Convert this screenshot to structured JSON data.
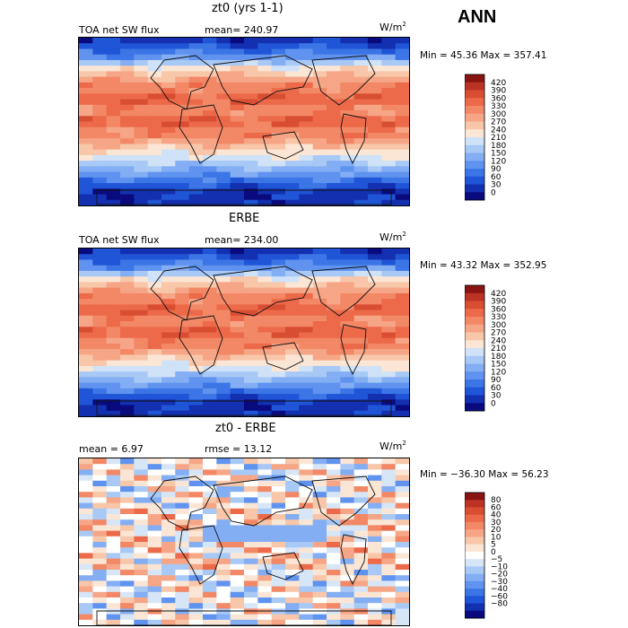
{
  "season": "ANN",
  "colors": {
    "sw_scale": [
      "#0a0a7f",
      "#1330b0",
      "#1f55d6",
      "#3c75e6",
      "#5f93ef",
      "#84aef3",
      "#a8c9f6",
      "#cfe2f7",
      "#fbe6d6",
      "#f8c6a8",
      "#f6a686",
      "#f28866",
      "#ec6a4a",
      "#d94e33",
      "#bb3324",
      "#8a1411"
    ],
    "diff_scale": [
      "#0a0a7f",
      "#1330b0",
      "#1f55d6",
      "#3c75e6",
      "#5f93ef",
      "#84aef3",
      "#a8c9f6",
      "#d7e6f7",
      "#ffffff",
      "#fbe6d6",
      "#f8c6a8",
      "#f6a686",
      "#f28866",
      "#ec6a4a",
      "#d94e33",
      "#bb3324",
      "#8a1411"
    ]
  },
  "panels": [
    {
      "title": "zt0 (yrs 1-1)",
      "variable": "TOA net SW flux",
      "stat1": "mean= 240.97",
      "stat2": "",
      "units": "W/m",
      "units_exp": "2",
      "minmax": "Min =  45.36 Max = 357.41",
      "colorbar_labels": [
        "420",
        "390",
        "360",
        "330",
        "300",
        "270",
        "240",
        "210",
        "180",
        "150",
        "120",
        "90",
        "60",
        "30",
        "0"
      ],
      "kind": "sw"
    },
    {
      "title": "ERBE",
      "variable": "TOA net SW flux",
      "stat1": "mean= 234.00",
      "stat2": "",
      "units": "W/m",
      "units_exp": "2",
      "minmax": "Min =  43.32 Max = 352.95",
      "colorbar_labels": [
        "420",
        "390",
        "360",
        "330",
        "300",
        "270",
        "240",
        "210",
        "180",
        "150",
        "120",
        "90",
        "60",
        "30",
        "0"
      ],
      "kind": "sw"
    },
    {
      "title": "zt0 - ERBE",
      "variable": "",
      "stat1": "mean =    6.97",
      "stat2": "rmse =   13.12",
      "units": "W/m",
      "units_exp": "2",
      "minmax": "Min = −36.30 Max =  56.23",
      "colorbar_labels": [
        "80",
        "60",
        "40",
        "30",
        "20",
        "10",
        "5",
        "0",
        "−5",
        "−10",
        "−20",
        "−30",
        "−40",
        "−60",
        "−80"
      ],
      "kind": "diff"
    }
  ],
  "chart_data": [
    {
      "type": "heatmap",
      "title": "zt0 (yrs 1-1)",
      "subtitle": "TOA net SW flux",
      "units": "W/m2",
      "mean": 240.97,
      "min": 45.36,
      "max": 357.41,
      "colorbar_levels": [
        0,
        30,
        60,
        90,
        120,
        150,
        180,
        210,
        240,
        270,
        300,
        330,
        360,
        390,
        420
      ]
    },
    {
      "type": "heatmap",
      "title": "ERBE",
      "subtitle": "TOA net SW flux",
      "units": "W/m2",
      "mean": 234.0,
      "min": 43.32,
      "max": 352.95,
      "colorbar_levels": [
        0,
        30,
        60,
        90,
        120,
        150,
        180,
        210,
        240,
        270,
        300,
        330,
        360,
        390,
        420
      ]
    },
    {
      "type": "heatmap",
      "title": "zt0 - ERBE",
      "units": "W/m2",
      "mean": 6.97,
      "rmse": 13.12,
      "min": -36.3,
      "max": 56.23,
      "colorbar_levels": [
        -80,
        -60,
        -40,
        -30,
        -20,
        -10,
        -5,
        0,
        5,
        10,
        20,
        30,
        40,
        60,
        80
      ]
    }
  ]
}
